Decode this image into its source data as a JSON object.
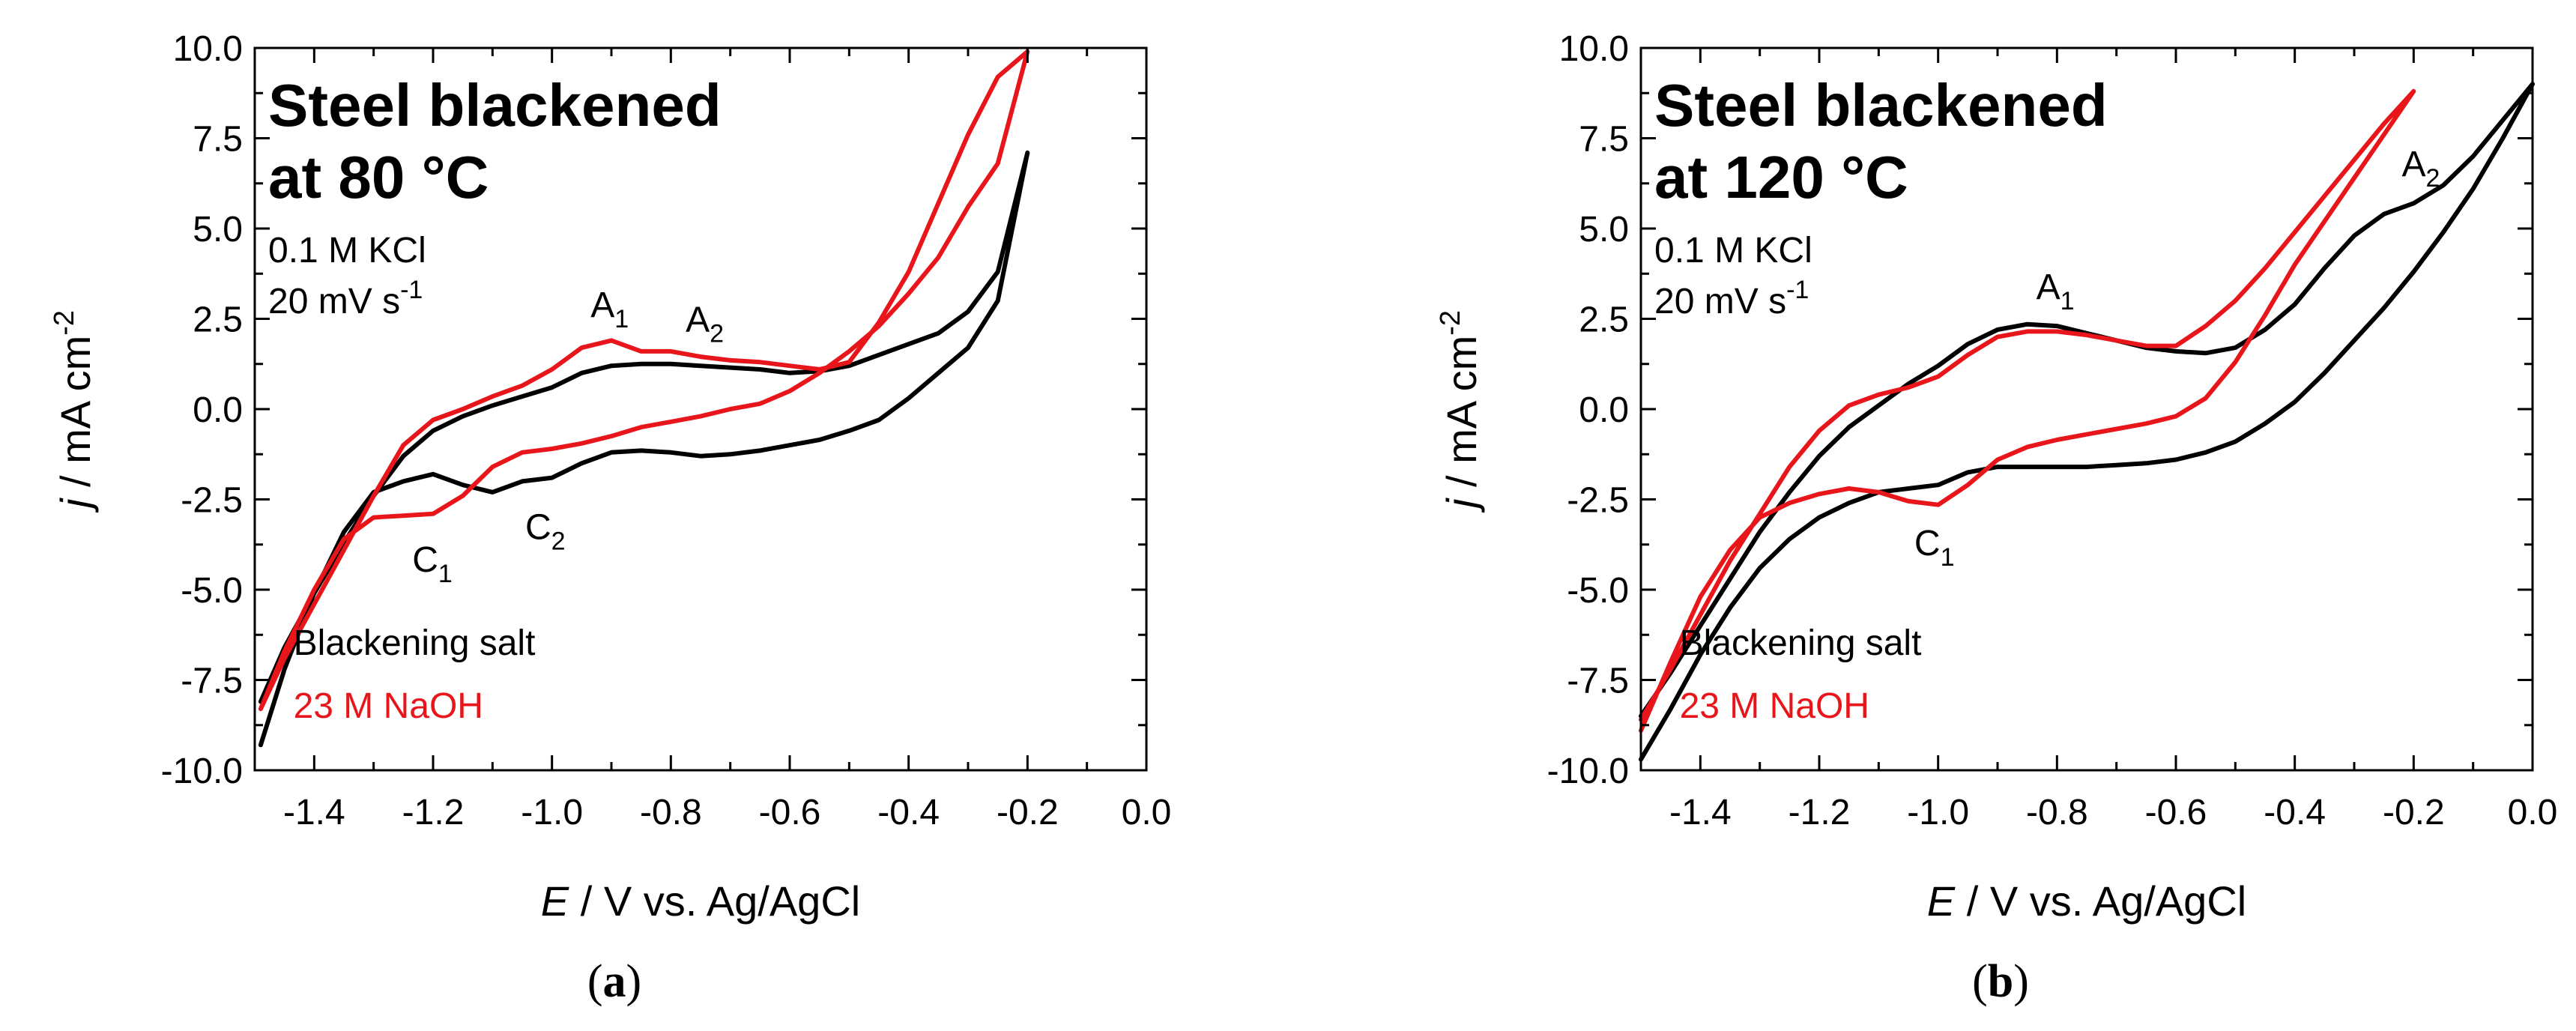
{
  "colors": {
    "blackening_salt": "#000000",
    "naoh": "#e8161b",
    "axis": "#000000"
  },
  "chart_data": [
    {
      "type": "line",
      "panel_label": "a",
      "title": "Steel blackened",
      "title_line2": "at 80 °C",
      "conditions": [
        "0.1 M KCl",
        "20 mV s"
      ],
      "conditions_sup": "-1",
      "xlabel_italic": "E",
      "xlabel_rest": " / V vs. Ag/AgCl",
      "ylabel_italic": "j",
      "ylabel_rest": " / mA cm",
      "ylabel_sup": "-2",
      "xlim": [
        -1.5,
        0.0
      ],
      "ylim": [
        -10.0,
        10.0
      ],
      "xticks": [
        -1.4,
        -1.2,
        -1.0,
        -0.8,
        -0.6,
        -0.4,
        -0.2,
        0.0
      ],
      "xtick_labels": [
        "-1.4",
        "-1.2",
        "-1.0",
        "-0.8",
        "-0.6",
        "-0.4",
        "-0.2",
        "0.0"
      ],
      "yticks": [
        -10.0,
        -7.5,
        -5.0,
        -2.5,
        0.0,
        2.5,
        5.0,
        7.5,
        10.0
      ],
      "ytick_labels": [
        "-10.0",
        "-7.5",
        "-5.0",
        "-2.5",
        "0.0",
        "2.5",
        "5.0",
        "7.5",
        "10.0"
      ],
      "series": [
        {
          "name": "Blackening salt",
          "color": "#000000",
          "x": [
            -1.49,
            -1.45,
            -1.4,
            -1.35,
            -1.3,
            -1.25,
            -1.2,
            -1.15,
            -1.1,
            -1.05,
            -1.0,
            -0.95,
            -0.9,
            -0.85,
            -0.8,
            -0.75,
            -0.7,
            -0.65,
            -0.6,
            -0.55,
            -0.5,
            -0.45,
            -0.4,
            -0.35,
            -0.3,
            -0.25,
            -0.2,
            -0.25,
            -0.3,
            -0.35,
            -0.4,
            -0.45,
            -0.5,
            -0.55,
            -0.6,
            -0.65,
            -0.7,
            -0.75,
            -0.8,
            -0.85,
            -0.9,
            -0.95,
            -1.0,
            -1.05,
            -1.1,
            -1.15,
            -1.2,
            -1.25,
            -1.3,
            -1.35,
            -1.4,
            -1.45,
            -1.49
          ],
          "y": [
            -9.3,
            -7.2,
            -5.1,
            -3.4,
            -2.3,
            -2.0,
            -1.8,
            -2.1,
            -2.3,
            -2.0,
            -1.9,
            -1.5,
            -1.2,
            -1.15,
            -1.2,
            -1.3,
            -1.25,
            -1.15,
            -1.0,
            -0.85,
            -0.6,
            -0.3,
            0.3,
            1.0,
            1.7,
            3.0,
            7.1,
            3.8,
            2.7,
            2.1,
            1.8,
            1.5,
            1.2,
            1.05,
            1.0,
            1.1,
            1.15,
            1.2,
            1.25,
            1.25,
            1.2,
            1.0,
            0.6,
            0.35,
            0.1,
            -0.2,
            -0.6,
            -1.3,
            -2.4,
            -3.7,
            -5.1,
            -6.6,
            -8.1
          ]
        },
        {
          "name": "23 M NaOH",
          "color": "#e8161b",
          "x": [
            -1.49,
            -1.45,
            -1.4,
            -1.35,
            -1.3,
            -1.25,
            -1.2,
            -1.15,
            -1.1,
            -1.05,
            -1.0,
            -0.95,
            -0.9,
            -0.85,
            -0.8,
            -0.75,
            -0.7,
            -0.65,
            -0.6,
            -0.55,
            -0.5,
            -0.45,
            -0.4,
            -0.35,
            -0.3,
            -0.25,
            -0.2,
            -0.25,
            -0.3,
            -0.35,
            -0.4,
            -0.45,
            -0.5,
            -0.55,
            -0.6,
            -0.65,
            -0.7,
            -0.75,
            -0.8,
            -0.85,
            -0.9,
            -0.95,
            -1.0,
            -1.05,
            -1.1,
            -1.15,
            -1.2,
            -1.25,
            -1.3,
            -1.35,
            -1.4,
            -1.45,
            -1.49
          ],
          "y": [
            -8.3,
            -6.7,
            -5.0,
            -3.6,
            -3.0,
            -2.95,
            -2.9,
            -2.4,
            -1.6,
            -1.2,
            -1.1,
            -0.95,
            -0.75,
            -0.5,
            -0.35,
            -0.2,
            0.0,
            0.15,
            0.5,
            1.0,
            1.6,
            2.3,
            3.2,
            4.2,
            5.6,
            6.8,
            9.9,
            9.2,
            7.6,
            5.7,
            3.8,
            2.4,
            1.3,
            1.1,
            1.2,
            1.3,
            1.35,
            1.45,
            1.6,
            1.6,
            1.9,
            1.7,
            1.1,
            0.65,
            0.35,
            0.0,
            -0.3,
            -1.0,
            -2.4,
            -3.9,
            -5.4,
            -6.9,
            -8.3
          ]
        }
      ],
      "annotations": [
        {
          "label": "A",
          "sub": "1",
          "x": -0.935,
          "y": 2.55
        },
        {
          "label": "A",
          "sub": "2",
          "x": -0.775,
          "y": 2.15
        },
        {
          "label": "C",
          "sub": "1",
          "x": -1.235,
          "y": -4.5
        },
        {
          "label": "C",
          "sub": "2",
          "x": -1.045,
          "y": -3.6
        }
      ],
      "legend": [
        "Blackening salt",
        "23 M NaOH"
      ],
      "legend_position": "bottom-left"
    },
    {
      "type": "line",
      "panel_label": "b",
      "title": "Steel blackened",
      "title_line2": "at 120 °C",
      "conditions": [
        "0.1 M KCl",
        "20 mV s"
      ],
      "conditions_sup": "-1",
      "xlabel_italic": "E",
      "xlabel_rest": " / V vs. Ag/AgCl",
      "ylabel_italic": "j",
      "ylabel_rest": " / mA cm",
      "ylabel_sup": "-2",
      "xlim": [
        -1.5,
        0.0
      ],
      "ylim": [
        -10.0,
        10.0
      ],
      "xticks": [
        -1.4,
        -1.2,
        -1.0,
        -0.8,
        -0.6,
        -0.4,
        -0.2,
        0.0
      ],
      "xtick_labels": [
        "-1.4",
        "-1.2",
        "-1.0",
        "-0.8",
        "-0.6",
        "-0.4",
        "-0.2",
        "0.0"
      ],
      "yticks": [
        -10.0,
        -7.5,
        -5.0,
        -2.5,
        0.0,
        2.5,
        5.0,
        7.5,
        10.0
      ],
      "ytick_labels": [
        "-10.0",
        "-7.5",
        "-5.0",
        "-2.5",
        "0.0",
        "2.5",
        "5.0",
        "7.5",
        "10.0"
      ],
      "series": [
        {
          "name": "Blackening salt",
          "color": "#000000",
          "x": [
            -1.5,
            -1.45,
            -1.4,
            -1.35,
            -1.3,
            -1.25,
            -1.2,
            -1.15,
            -1.1,
            -1.05,
            -1.0,
            -0.95,
            -0.9,
            -0.85,
            -0.8,
            -0.75,
            -0.7,
            -0.65,
            -0.6,
            -0.55,
            -0.5,
            -0.45,
            -0.4,
            -0.35,
            -0.3,
            -0.25,
            -0.2,
            -0.15,
            -0.1,
            -0.05,
            0.0,
            -0.05,
            -0.1,
            -0.15,
            -0.2,
            -0.25,
            -0.3,
            -0.35,
            -0.4,
            -0.45,
            -0.5,
            -0.55,
            -0.6,
            -0.65,
            -0.7,
            -0.75,
            -0.8,
            -0.85,
            -0.9,
            -0.95,
            -1.0,
            -1.05,
            -1.1,
            -1.15,
            -1.2,
            -1.25,
            -1.3,
            -1.35,
            -1.4,
            -1.45,
            -1.5
          ],
          "y": [
            -9.7,
            -8.3,
            -6.8,
            -5.5,
            -4.4,
            -3.6,
            -3.0,
            -2.6,
            -2.3,
            -2.2,
            -2.1,
            -1.75,
            -1.6,
            -1.6,
            -1.6,
            -1.6,
            -1.55,
            -1.5,
            -1.4,
            -1.2,
            -0.9,
            -0.4,
            0.2,
            1.0,
            1.9,
            2.8,
            3.8,
            4.9,
            6.1,
            7.5,
            9.0,
            8.0,
            7.0,
            6.2,
            5.7,
            5.4,
            4.8,
            3.9,
            2.9,
            2.2,
            1.7,
            1.55,
            1.6,
            1.7,
            1.9,
            2.1,
            2.3,
            2.35,
            2.2,
            1.8,
            1.2,
            0.7,
            0.1,
            -0.5,
            -1.3,
            -2.3,
            -3.4,
            -4.7,
            -6.0,
            -7.3,
            -8.5
          ]
        },
        {
          "name": "23 M NaOH",
          "color": "#e8161b",
          "x": [
            -1.5,
            -1.45,
            -1.4,
            -1.35,
            -1.3,
            -1.25,
            -1.2,
            -1.15,
            -1.1,
            -1.05,
            -1.0,
            -0.95,
            -0.9,
            -0.85,
            -0.8,
            -0.75,
            -0.7,
            -0.65,
            -0.6,
            -0.55,
            -0.5,
            -0.45,
            -0.4,
            -0.35,
            -0.3,
            -0.25,
            -0.2,
            -0.25,
            -0.3,
            -0.35,
            -0.4,
            -0.45,
            -0.5,
            -0.55,
            -0.6,
            -0.65,
            -0.7,
            -0.75,
            -0.8,
            -0.85,
            -0.9,
            -0.95,
            -1.0,
            -1.05,
            -1.1,
            -1.15,
            -1.2,
            -1.25,
            -1.3,
            -1.35,
            -1.4,
            -1.45,
            -1.5
          ],
          "y": [
            -8.9,
            -7.0,
            -5.2,
            -3.9,
            -3.0,
            -2.6,
            -2.35,
            -2.2,
            -2.3,
            -2.55,
            -2.65,
            -2.1,
            -1.4,
            -1.05,
            -0.85,
            -0.7,
            -0.55,
            -0.4,
            -0.2,
            0.3,
            1.3,
            2.6,
            4.0,
            5.2,
            6.4,
            7.6,
            8.8,
            7.9,
            6.9,
            5.9,
            4.9,
            3.9,
            3.0,
            2.3,
            1.75,
            1.75,
            1.9,
            2.05,
            2.15,
            2.15,
            2.0,
            1.5,
            0.9,
            0.6,
            0.4,
            0.1,
            -0.6,
            -1.6,
            -2.9,
            -4.2,
            -5.7,
            -7.2,
            -8.6
          ]
        }
      ],
      "annotations": [
        {
          "label": "A",
          "sub": "1",
          "x": -0.835,
          "y": 3.05
        },
        {
          "label": "A",
          "sub": "2",
          "x": -0.22,
          "y": 6.45
        },
        {
          "label": "C",
          "sub": "1",
          "x": -1.04,
          "y": -4.05
        }
      ],
      "legend": [
        "Blackening salt",
        "23 M NaOH"
      ],
      "legend_position": "bottom-left"
    }
  ]
}
